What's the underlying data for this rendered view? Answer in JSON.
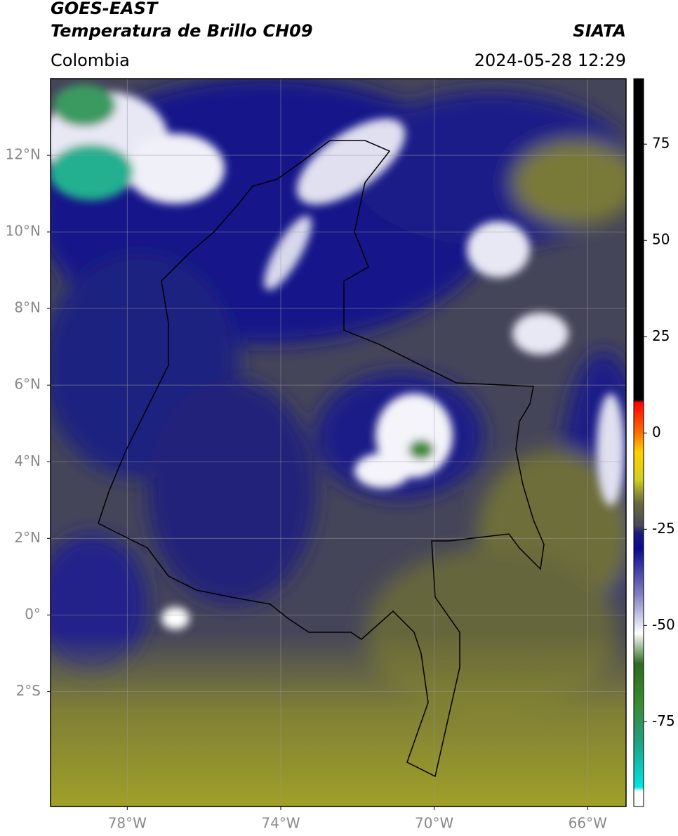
{
  "header": {
    "title": "GOES-EAST",
    "subtitle": "Temperatura de Brillo CH09",
    "source": "SIATA",
    "region": "Colombia",
    "timestamp": "2024-05-28 12:29"
  },
  "map": {
    "xlim": [
      -80,
      -65
    ],
    "ylim": [
      -5,
      14
    ],
    "grid": true,
    "xticks": [
      {
        "value": -78,
        "label": "78°W"
      },
      {
        "value": -74,
        "label": "74°W"
      },
      {
        "value": -70,
        "label": "70°W"
      },
      {
        "value": -66,
        "label": "66°W"
      }
    ],
    "yticks": [
      {
        "value": 12,
        "label": "12°N"
      },
      {
        "value": 10,
        "label": "10°N"
      },
      {
        "value": 8,
        "label": "8°N"
      },
      {
        "value": 6,
        "label": "6°N"
      },
      {
        "value": 4,
        "label": "4°N"
      },
      {
        "value": 2,
        "label": "2°N"
      },
      {
        "value": 0,
        "label": "0°"
      },
      {
        "value": -2,
        "label": "2°S"
      }
    ]
  },
  "colorbar": {
    "lim": [
      -97,
      92
    ],
    "ticks": [
      75,
      50,
      25,
      0,
      -25,
      -50,
      -75
    ],
    "stops": [
      {
        "value": -97,
        "color": "#ffffff"
      },
      {
        "value": -93,
        "color": "#ffffff"
      },
      {
        "value": -92,
        "color": "#00e5e5"
      },
      {
        "value": -80,
        "color": "#20a080"
      },
      {
        "value": -70,
        "color": "#3a8a30"
      },
      {
        "value": -60,
        "color": "#2f6a20"
      },
      {
        "value": -52,
        "color": "#ffffff"
      },
      {
        "value": -42,
        "color": "#8080c0"
      },
      {
        "value": -30,
        "color": "#0a0a90"
      },
      {
        "value": -26,
        "color": "#1a1a80"
      },
      {
        "value": -24,
        "color": "#4a4a55"
      },
      {
        "value": -18,
        "color": "#6a6a40"
      },
      {
        "value": -12,
        "color": "#d0d020"
      },
      {
        "value": -5,
        "color": "#ffd000"
      },
      {
        "value": 0,
        "color": "#ff7000"
      },
      {
        "value": 8,
        "color": "#ff0000"
      },
      {
        "value": 8.5,
        "color": "#000000"
      },
      {
        "value": 92,
        "color": "#000000"
      }
    ]
  }
}
